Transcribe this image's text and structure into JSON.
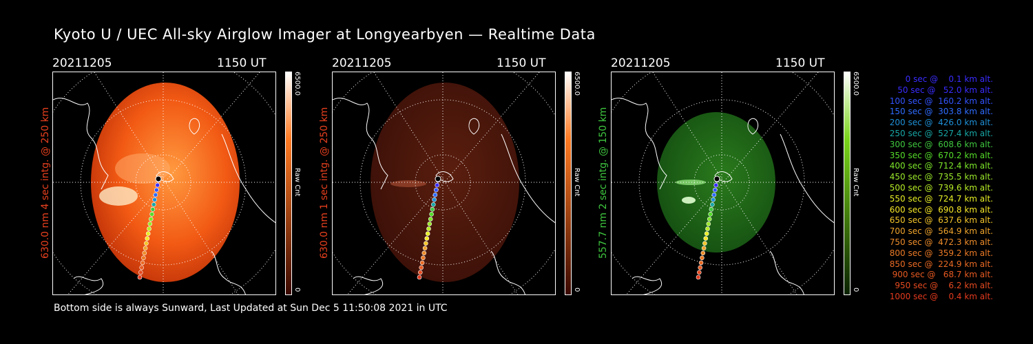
{
  "title": "Kyoto U / UEC All-sky Airglow Imager at Longyearbyen — Realtime Data",
  "footer": "Bottom side is always Sunward, Last Updated at Sun Dec  5 11:50:08 2021 in UTC",
  "panels": [
    {
      "date": "20211205",
      "time": "1150 UT",
      "ylabel": "630.0 nm 4 sec intg. @ 250 km",
      "ylabel_color": "#e8401e",
      "cbar_max": "6500.0",
      "cbar_min": "0",
      "cbar_unit": "Raw Cnt",
      "cbar_top": "#ffffff",
      "cbar_mid": "#ff7a22",
      "cbar_bottom": "#3a0800",
      "brightness": "strong",
      "tint": "red"
    },
    {
      "date": "20211205",
      "time": "1150 UT",
      "ylabel": "630.0 nm 1 sec intg. @ 250 km",
      "ylabel_color": "#e8401e",
      "cbar_max": "6500.0",
      "cbar_min": "0",
      "cbar_unit": "Raw Cnt",
      "cbar_top": "#ffffff",
      "cbar_mid": "#ff7a22",
      "cbar_bottom": "#3a0800",
      "brightness": "dim",
      "tint": "red"
    },
    {
      "date": "20211205",
      "time": "1150 UT",
      "ylabel": "557.7 nm 2 sec intg. @ 150 km",
      "ylabel_color": "#3fc83f",
      "cbar_max": "6500.0",
      "cbar_min": "0",
      "cbar_unit": "Raw Cnt",
      "cbar_top": "#ffffff",
      "cbar_mid": "#7ad51a",
      "cbar_bottom": "#0a2200",
      "brightness": "medium",
      "tint": "green"
    }
  ],
  "legend": [
    {
      "text": "   0 sec @    0.1 km alt.",
      "color": "#3a2cff"
    },
    {
      "text": "  50 sec @   52.0 km alt.",
      "color": "#3a2cff"
    },
    {
      "text": " 100 sec @  160.2 km alt.",
      "color": "#3254ff"
    },
    {
      "text": " 150 sec @  303.8 km alt.",
      "color": "#2f6cff"
    },
    {
      "text": " 200 sec @  426.0 km alt.",
      "color": "#1e90d8"
    },
    {
      "text": " 250 sec @  527.4 km alt.",
      "color": "#18a6a6"
    },
    {
      "text": " 300 sec @  608.6 km alt.",
      "color": "#3fc83f"
    },
    {
      "text": " 350 sec @  670.2 km alt.",
      "color": "#55dd2a"
    },
    {
      "text": " 400 sec @  712.4 km alt.",
      "color": "#7ce62a"
    },
    {
      "text": " 450 sec @  735.5 km alt.",
      "color": "#9ae82a"
    },
    {
      "text": " 500 sec @  739.6 km alt.",
      "color": "#b8ee26"
    },
    {
      "text": " 550 sec @  724.7 km alt.",
      "color": "#e6ee24"
    },
    {
      "text": " 600 sec @  690.8 km alt.",
      "color": "#f7e826"
    },
    {
      "text": " 650 sec @  637.6 km alt.",
      "color": "#f4c52a"
    },
    {
      "text": " 700 sec @  564.9 km alt.",
      "color": "#f0a42c"
    },
    {
      "text": " 750 sec @  472.3 km alt.",
      "color": "#ee8c2a"
    },
    {
      "text": " 800 sec @  359.2 km alt.",
      "color": "#ec7a26"
    },
    {
      "text": " 850 sec @  224.9 km alt.",
      "color": "#ea6a24"
    },
    {
      "text": " 900 sec @   68.7 km alt.",
      "color": "#e85a22"
    },
    {
      "text": " 950 sec @    6.2 km alt.",
      "color": "#e64a20"
    },
    {
      "text": "1000 sec @    0.4 km alt.",
      "color": "#e43a1e"
    }
  ]
}
